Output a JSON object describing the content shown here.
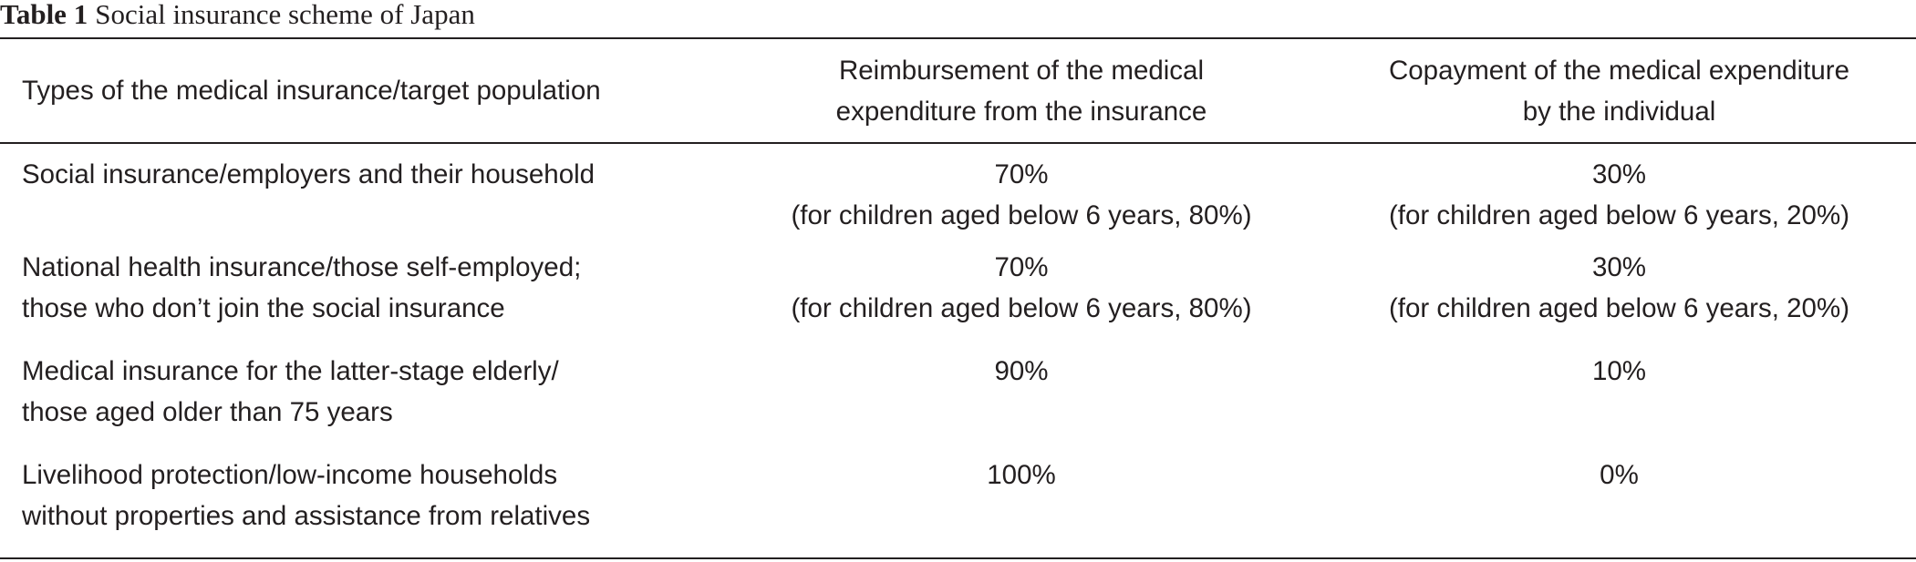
{
  "caption": {
    "label": "Table 1",
    "title": "Social insurance scheme of Japan"
  },
  "table": {
    "headers": [
      [
        "Types of the medical insurance/target population"
      ],
      [
        "Reimbursement of the medical",
        "expenditure from the insurance"
      ],
      [
        "Copayment of the medical expenditure",
        "by the individual"
      ]
    ],
    "rows": [
      {
        "type": [
          "Social insurance/employers and their household"
        ],
        "reimbursement": [
          "70%",
          "(for children aged below 6 years, 80%)"
        ],
        "copayment": [
          "30%",
          "(for children aged below 6 years, 20%)"
        ]
      },
      {
        "type": [
          "National health insurance/those self-employed;",
          "those who don’t join the social insurance"
        ],
        "reimbursement": [
          "70%",
          "(for children aged below 6 years, 80%)"
        ],
        "copayment": [
          "30%",
          "(for children aged below 6 years, 20%)"
        ]
      },
      {
        "type": [
          "Medical insurance for the latter-stage elderly/",
          "those aged older than 75 years"
        ],
        "reimbursement": [
          "90%"
        ],
        "copayment": [
          "10%"
        ]
      },
      {
        "type": [
          "Livelihood protection/low-income households",
          "without properties and assistance from relatives"
        ],
        "reimbursement": [
          "100%"
        ],
        "copayment": [
          "0%"
        ]
      }
    ]
  }
}
